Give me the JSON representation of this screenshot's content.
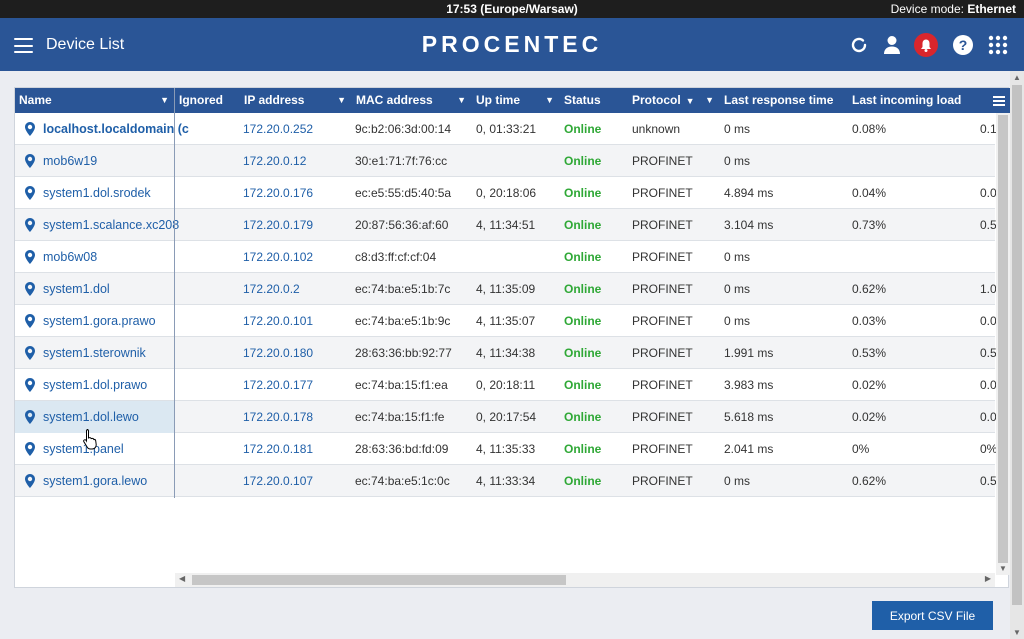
{
  "topbar": {
    "clock": "17:53 (Europe/Warsaw)",
    "mode_label": "Device mode:",
    "mode_value": "Ethernet"
  },
  "header": {
    "title": "Device List",
    "brand": "PROCENTEC"
  },
  "colors": {
    "header": "#2a5596",
    "link": "#1f5fa8",
    "online": "#2fa836",
    "alert": "#d9262c"
  },
  "table": {
    "columns": [
      {
        "label": "Name"
      },
      {
        "label": "Ignored"
      },
      {
        "label": "IP address"
      },
      {
        "label": "MAC address"
      },
      {
        "label": "Up time"
      },
      {
        "label": "Status"
      },
      {
        "label": "Protocol"
      },
      {
        "label": "Last response time"
      },
      {
        "label": "Last incoming load"
      }
    ],
    "rows": [
      {
        "name": "localhost.localdomain (c",
        "ip": "172.20.0.252",
        "mac": "9c:b2:06:3d:00:14",
        "uptime": "0, 01:33:21",
        "status": "Online",
        "protocol": "unknown",
        "response": "0 ms",
        "load": "0.08%",
        "extra": "0.1"
      },
      {
        "name": "mob6w19",
        "ip": "172.20.0.12",
        "mac": "30:e1:71:7f:76:cc",
        "uptime": "",
        "status": "Online",
        "protocol": "PROFINET",
        "response": "0 ms",
        "load": "",
        "extra": ""
      },
      {
        "name": "system1.dol.srodek",
        "ip": "172.20.0.176",
        "mac": "ec:e5:55:d5:40:5a",
        "uptime": "0, 20:18:06",
        "status": "Online",
        "protocol": "PROFINET",
        "response": "4.894 ms",
        "load": "0.04%",
        "extra": "0.0"
      },
      {
        "name": "system1.scalance.xc208",
        "ip": "172.20.0.179",
        "mac": "20:87:56:36:af:60",
        "uptime": "4, 11:34:51",
        "status": "Online",
        "protocol": "PROFINET",
        "response": "3.104 ms",
        "load": "0.73%",
        "extra": "0.5"
      },
      {
        "name": "mob6w08",
        "ip": "172.20.0.102",
        "mac": "c8:d3:ff:cf:cf:04",
        "uptime": "",
        "status": "Online",
        "protocol": "PROFINET",
        "response": "0 ms",
        "load": "",
        "extra": ""
      },
      {
        "name": "system1.dol",
        "ip": "172.20.0.2",
        "mac": "ec:74:ba:e5:1b:7c",
        "uptime": "4, 11:35:09",
        "status": "Online",
        "protocol": "PROFINET",
        "response": "0 ms",
        "load": "0.62%",
        "extra": "1.0"
      },
      {
        "name": "system1.gora.prawo",
        "ip": "172.20.0.101",
        "mac": "ec:74:ba:e5:1b:9c",
        "uptime": "4, 11:35:07",
        "status": "Online",
        "protocol": "PROFINET",
        "response": "0 ms",
        "load": "0.03%",
        "extra": "0.0"
      },
      {
        "name": "system1.sterownik",
        "ip": "172.20.0.180",
        "mac": "28:63:36:bb:92:77",
        "uptime": "4, 11:34:38",
        "status": "Online",
        "protocol": "PROFINET",
        "response": "1.991 ms",
        "load": "0.53%",
        "extra": "0.5"
      },
      {
        "name": "system1.dol.prawo",
        "ip": "172.20.0.177",
        "mac": "ec:74:ba:15:f1:ea",
        "uptime": "0, 20:18:11",
        "status": "Online",
        "protocol": "PROFINET",
        "response": "3.983 ms",
        "load": "0.02%",
        "extra": "0.0"
      },
      {
        "name": "system1.dol.lewo",
        "ip": "172.20.0.178",
        "mac": "ec:74:ba:15:f1:fe",
        "uptime": "0, 20:17:54",
        "status": "Online",
        "protocol": "PROFINET",
        "response": "5.618 ms",
        "load": "0.02%",
        "extra": "0.0"
      },
      {
        "name": "system1.panel",
        "ip": "172.20.0.181",
        "mac": "28:63:36:bd:fd:09",
        "uptime": "4, 11:35:33",
        "status": "Online",
        "protocol": "PROFINET",
        "response": "2.041 ms",
        "load": "0%",
        "extra": "0%"
      },
      {
        "name": "system1.gora.lewo",
        "ip": "172.20.0.107",
        "mac": "ec:74:ba:e5:1c:0c",
        "uptime": "4, 11:33:34",
        "status": "Online",
        "protocol": "PROFINET",
        "response": "0 ms",
        "load": "0.62%",
        "extra": "0.5"
      }
    ]
  },
  "export_button": "Export CSV File"
}
